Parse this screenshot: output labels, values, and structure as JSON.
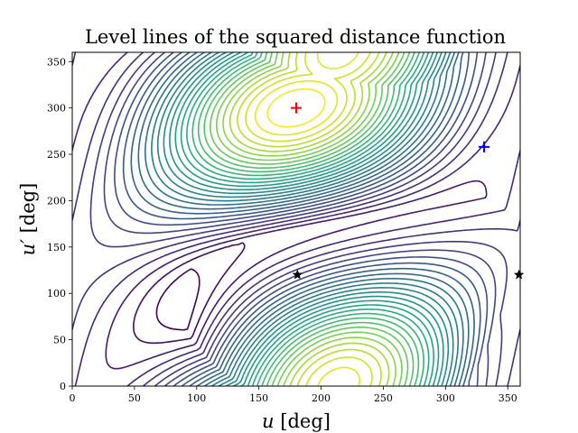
{
  "chart_data": {
    "type": "contour",
    "title": "Level lines of the squared distance function",
    "xlabel": "u [deg]",
    "xlabel_var": "u",
    "xlabel_unit": " [deg]",
    "ylabel": "u′ [deg]",
    "ylabel_var": "u′",
    "ylabel_unit": " [deg]",
    "xlim": [
      0,
      360
    ],
    "ylim": [
      0,
      360
    ],
    "xticks": [
      0,
      50,
      100,
      150,
      200,
      250,
      300,
      350
    ],
    "yticks": [
      0,
      50,
      100,
      150,
      200,
      250,
      300,
      350
    ],
    "colormap": "viridis",
    "grid": false,
    "level_count": 30,
    "markers": [
      {
        "symbol": "plus",
        "color": "#ff0000",
        "x": 180,
        "y": 300
      },
      {
        "symbol": "plus",
        "color": "#0000ff",
        "x": 331,
        "y": 258
      },
      {
        "symbol": "star",
        "color": "#000000",
        "x": 181,
        "y": 120
      },
      {
        "symbol": "star",
        "color": "#000000",
        "x": 359,
        "y": 120
      }
    ],
    "colors": {
      "max": "#fde725",
      "min": "#440154"
    }
  }
}
